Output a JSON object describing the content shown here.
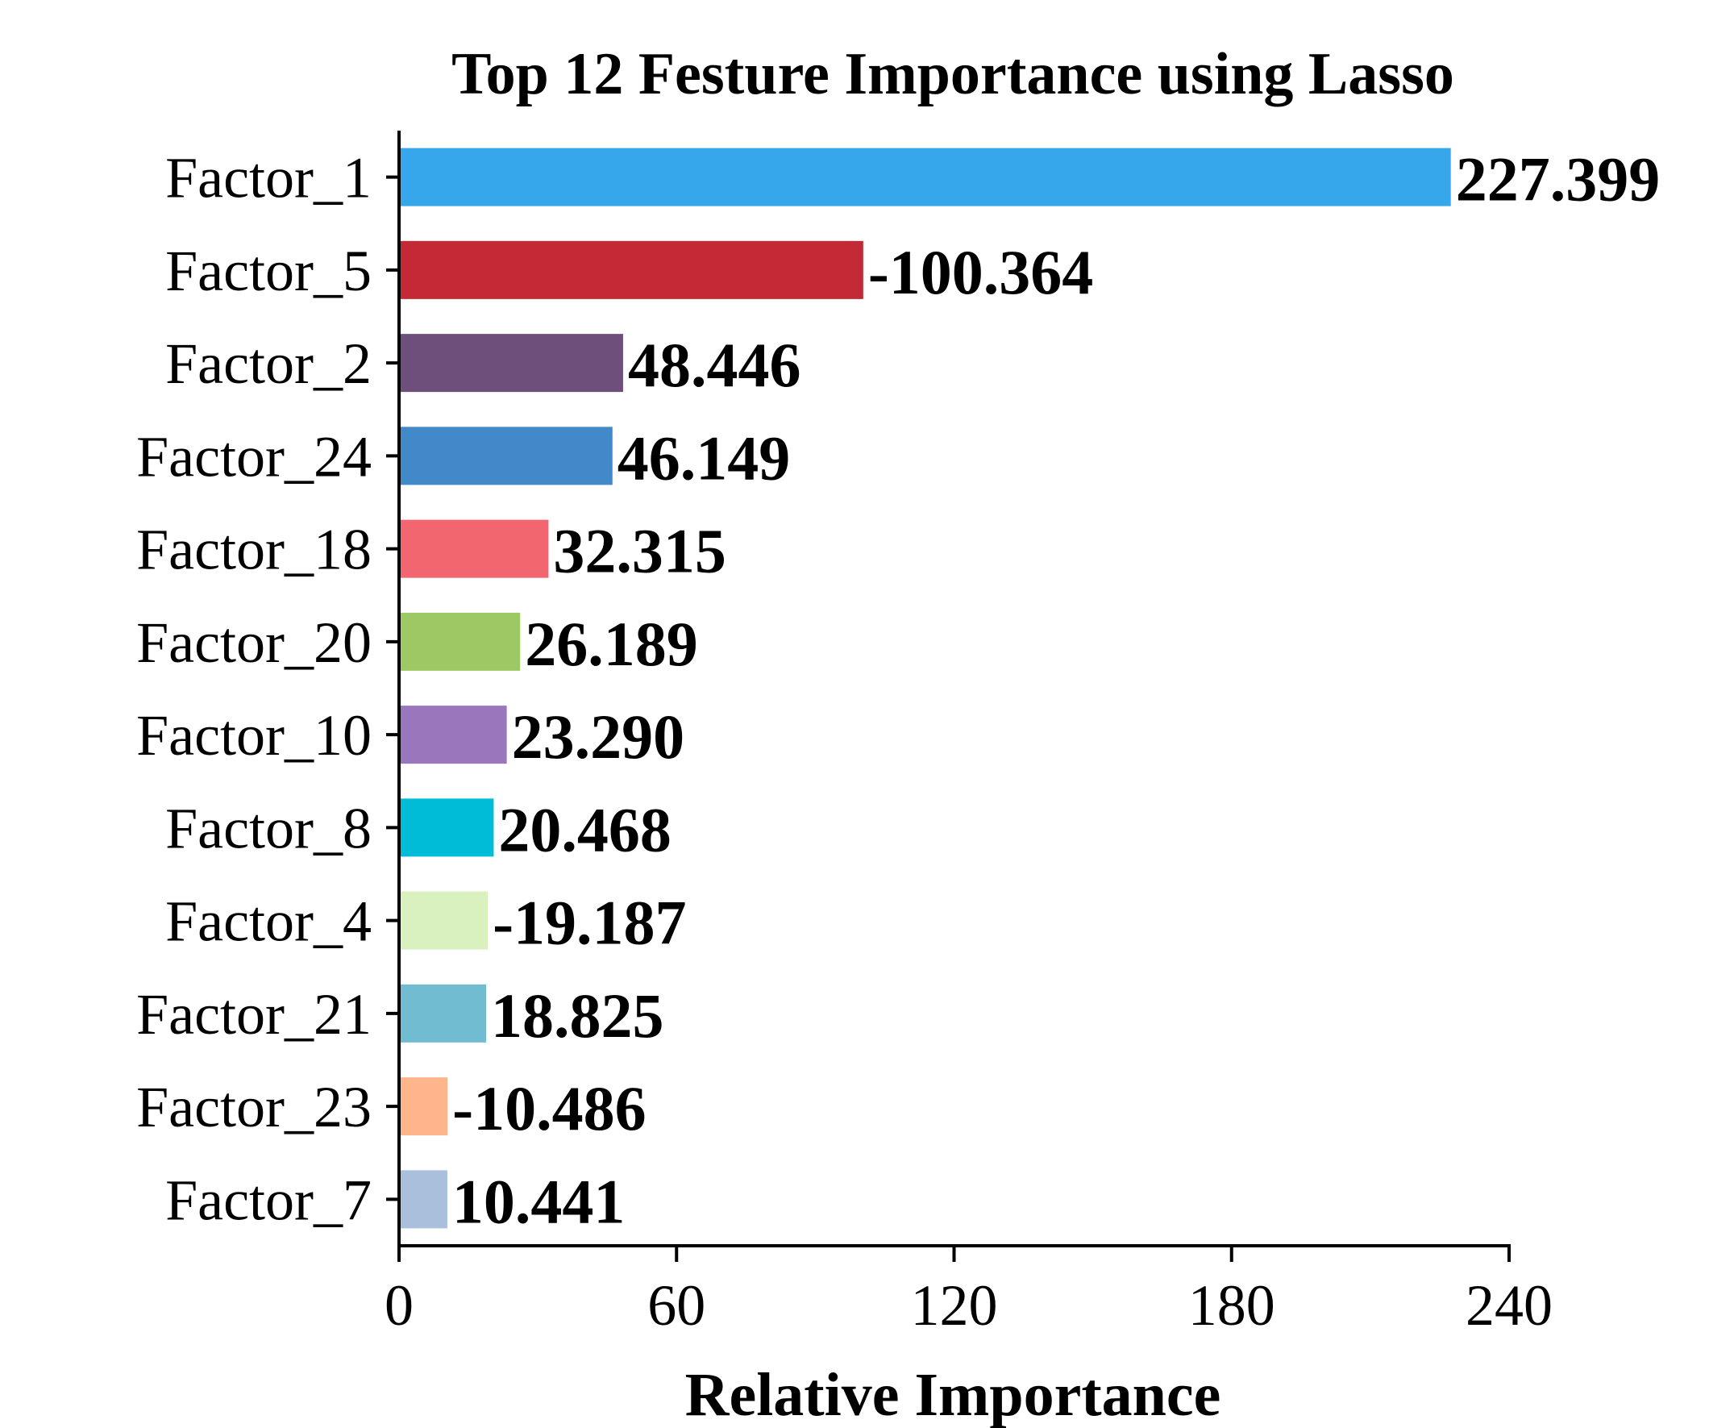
{
  "chart_data": {
    "type": "bar",
    "orientation": "horizontal",
    "title": "Top 12 Festure Importance using Lasso",
    "xlabel": "Relative Importance",
    "ylabel": "",
    "xlim": [
      0,
      240
    ],
    "xticks": [
      "0",
      "60",
      "120",
      "180",
      "240"
    ],
    "grid": false,
    "categories": [
      "Factor_1",
      "Factor_5",
      "Factor_2",
      "Factor_24",
      "Factor_18",
      "Factor_20",
      "Factor_10",
      "Factor_8",
      "Factor_4",
      "Factor_21",
      "Factor_23",
      "Factor_7"
    ],
    "values": [
      227.399,
      100.364,
      48.446,
      46.149,
      32.315,
      26.189,
      23.29,
      20.468,
      19.187,
      18.825,
      10.486,
      10.441
    ],
    "value_labels": [
      "227.399",
      "-100.364",
      "48.446",
      "46.149",
      "32.315",
      "26.189",
      "23.290",
      "20.468",
      "-19.187",
      "18.825",
      "-10.486",
      "10.441"
    ],
    "colors": [
      "#35a7ea",
      "#c32a35",
      "#6e4f7b",
      "#4189c9",
      "#f2666f",
      "#9cc963",
      "#9a77bd",
      "#00bcd6",
      "#d9f0bf",
      "#71bcd0",
      "#ffb58c",
      "#a9bfdc"
    ]
  }
}
